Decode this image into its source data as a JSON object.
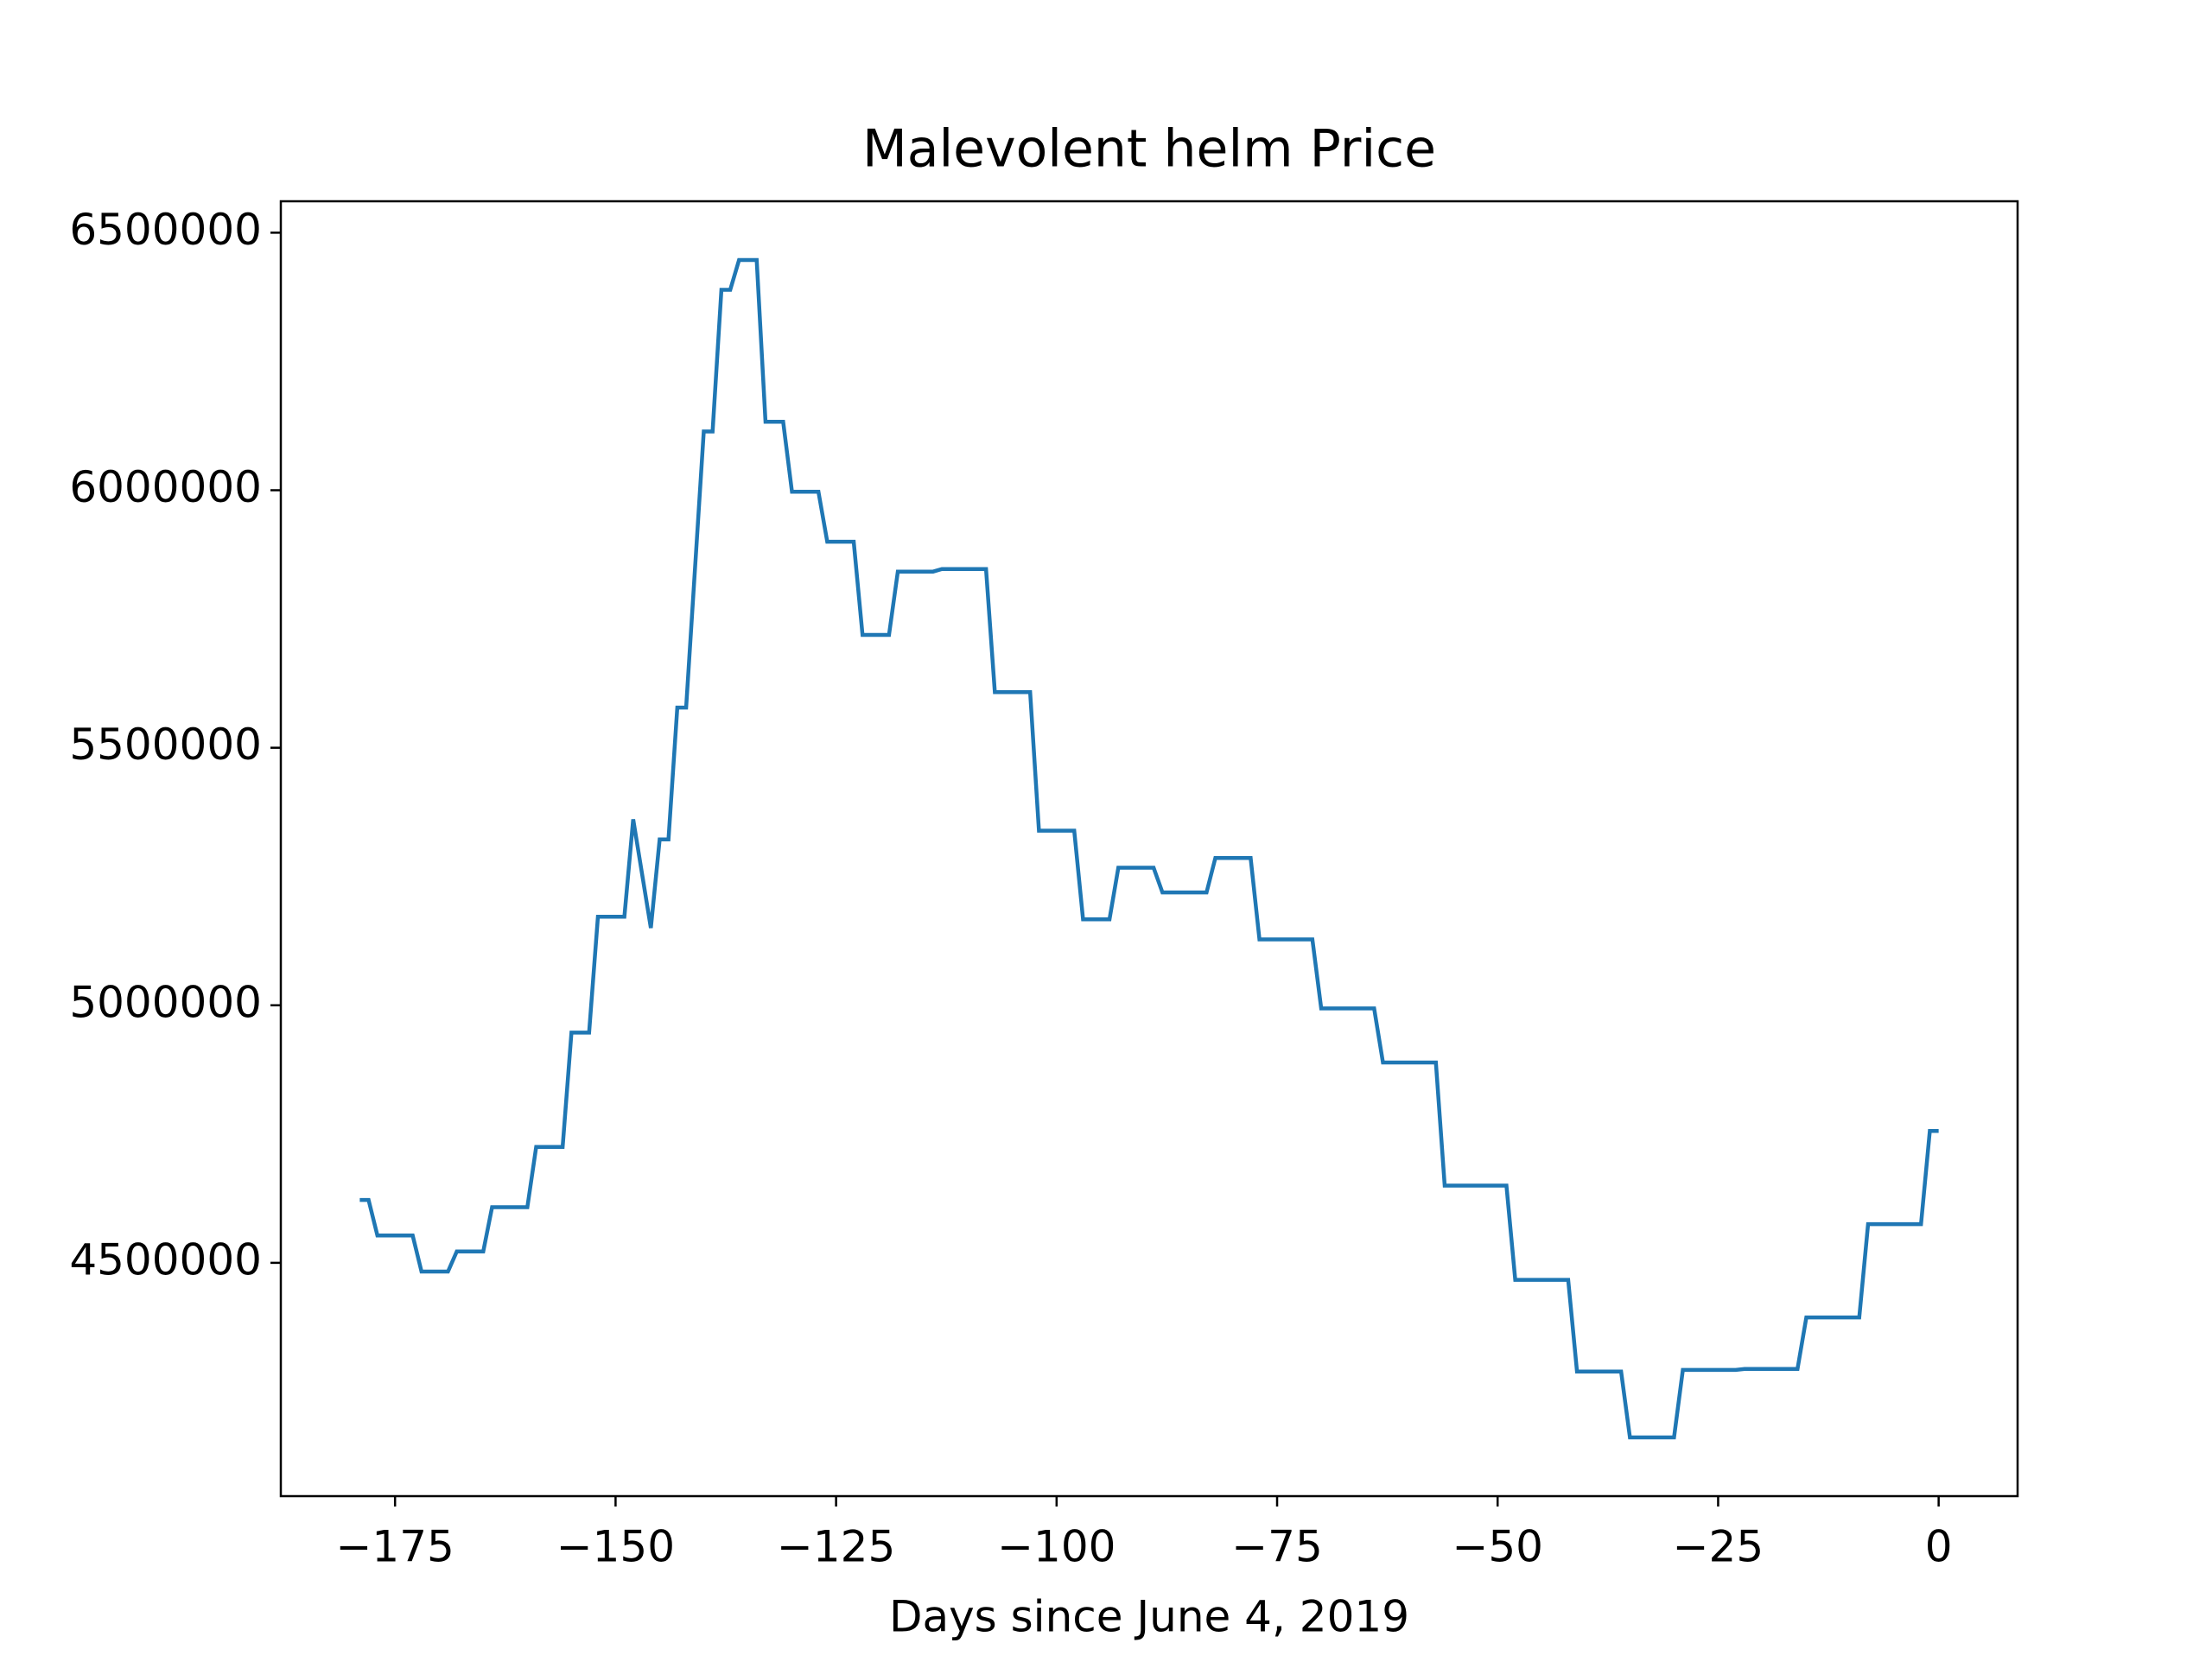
{
  "chart_data": {
    "type": "line",
    "title": "Malevolent helm Price",
    "x_label": "Days since June 4, 2019",
    "color": "#1f77b4",
    "x": [
      -179,
      -178,
      -177,
      -173,
      -172,
      -169,
      -168,
      -165,
      -164,
      -160,
      -159,
      -156,
      -155,
      -153,
      -152,
      -149,
      -148,
      -146,
      -145,
      -144,
      -143,
      -142,
      -140,
      -139,
      -138,
      -137,
      -136,
      -134,
      -133,
      -131,
      -130,
      -127,
      -126,
      -123,
      -122,
      -119,
      -118,
      -114,
      -113,
      -108,
      -107,
      -103,
      -102,
      -98,
      -97,
      -94,
      -93,
      -89,
      -88,
      -83,
      -82,
      -78,
      -77,
      -71,
      -70,
      -64,
      -63,
      -57,
      -56,
      -49,
      -48,
      -42,
      -41,
      -36,
      -35,
      -30,
      -29,
      -23,
      -22,
      -16,
      -15,
      -9,
      -8,
      -2,
      -1,
      0
    ],
    "values": [
      4622000,
      4622000,
      4553000,
      4553000,
      4483000,
      4483000,
      4522000,
      4522000,
      4608000,
      4608000,
      4725000,
      4725000,
      4947000,
      4947000,
      5172000,
      5172000,
      5361000,
      5150000,
      5322000,
      5322000,
      5578000,
      5578000,
      6114000,
      6114000,
      6389000,
      6389000,
      6447000,
      6447000,
      6133000,
      6133000,
      5997000,
      5997000,
      5900000,
      5900000,
      5719000,
      5719000,
      5842000,
      5842000,
      5847000,
      5847000,
      5608000,
      5608000,
      5339000,
      5339000,
      5167000,
      5167000,
      5267000,
      5267000,
      5219000,
      5219000,
      5286000,
      5286000,
      5128000,
      5128000,
      4994000,
      4994000,
      4889000,
      4889000,
      4650000,
      4650000,
      4467000,
      4467000,
      4289000,
      4289000,
      4161000,
      4161000,
      4292000,
      4292000,
      4294000,
      4294000,
      4394000,
      4394000,
      4575000,
      4575000,
      4756000,
      4756000
    ],
    "xlim": [
      -187.95,
      8.95
    ],
    "ylim": [
      4047000,
      6561000
    ],
    "xticks": [
      {
        "value": -175,
        "label": "−175"
      },
      {
        "value": -150,
        "label": "−150"
      },
      {
        "value": -125,
        "label": "−125"
      },
      {
        "value": -100,
        "label": "−100"
      },
      {
        "value": -75,
        "label": "−75"
      },
      {
        "value": -50,
        "label": "−50"
      },
      {
        "value": -25,
        "label": "−25"
      },
      0
    ],
    "yticks": [
      4500000,
      5000000,
      5500000,
      6000000,
      6500000
    ]
  }
}
